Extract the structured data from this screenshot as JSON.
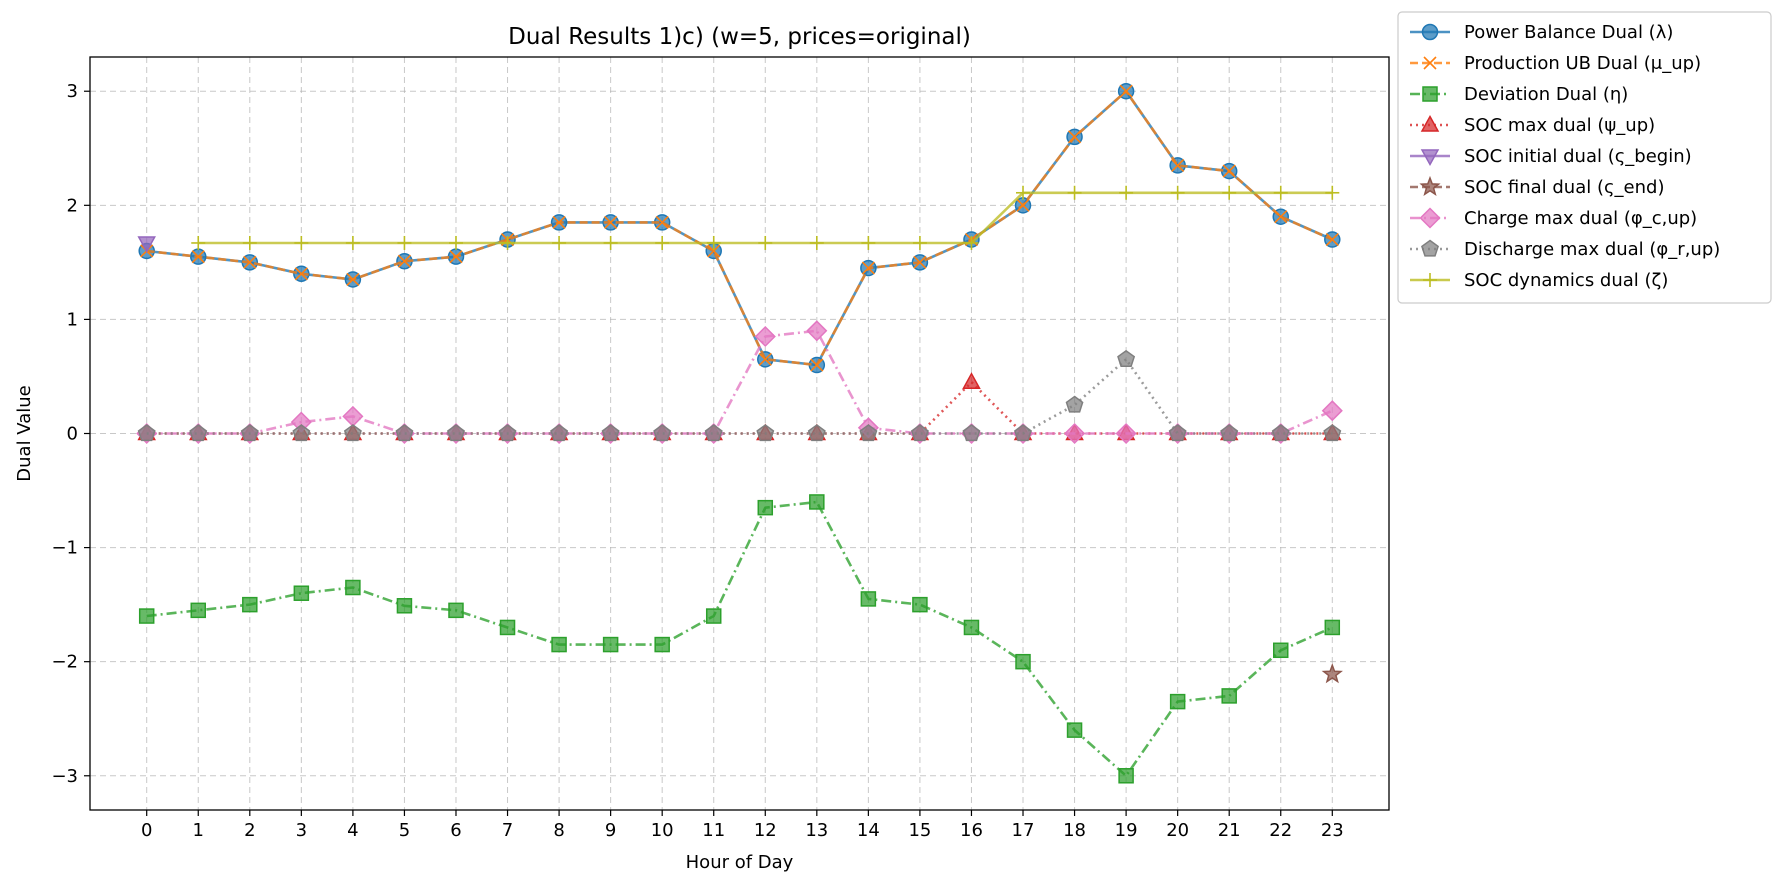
{
  "chart_data": {
    "type": "line",
    "title": "Dual Results 1)c) (w=5, prices=original)",
    "xlabel": "Hour of Day",
    "ylabel": "Dual Value",
    "x": [
      0,
      1,
      2,
      3,
      4,
      5,
      6,
      7,
      8,
      9,
      10,
      11,
      12,
      13,
      14,
      15,
      16,
      17,
      18,
      19,
      20,
      21,
      22,
      23
    ],
    "xlim": [
      -1.1,
      24.1
    ],
    "ylim": [
      -3.3,
      3.3
    ],
    "yticks": [
      -3,
      -2,
      -1,
      0,
      1,
      2,
      3
    ],
    "ytick_labels": [
      "−3",
      "−2",
      "−1",
      "0",
      "1",
      "2",
      "3"
    ],
    "grid": true,
    "legend_position": "outside-top-right",
    "series": [
      {
        "name": "Power Balance Dual (λ)",
        "color": "#1f77b4",
        "marker": "circle",
        "linestyle": "solid",
        "x": [
          0,
          1,
          2,
          3,
          4,
          5,
          6,
          7,
          8,
          9,
          10,
          11,
          12,
          13,
          14,
          15,
          16,
          17,
          18,
          19,
          20,
          21,
          22,
          23
        ],
        "values": [
          1.6,
          1.55,
          1.5,
          1.4,
          1.35,
          1.51,
          1.55,
          1.7,
          1.85,
          1.85,
          1.85,
          1.6,
          0.65,
          0.6,
          1.45,
          1.5,
          1.7,
          2.0,
          2.6,
          3.0,
          2.35,
          2.3,
          1.9,
          1.7
        ]
      },
      {
        "name": "Production UB Dual (μ_up)",
        "color": "#ff7f0e",
        "marker": "x",
        "linestyle": "dashed",
        "x": [
          0,
          1,
          2,
          3,
          4,
          5,
          6,
          7,
          8,
          9,
          10,
          11,
          12,
          13,
          14,
          15,
          16,
          17,
          18,
          19,
          20,
          21,
          22,
          23
        ],
        "values": [
          1.6,
          1.55,
          1.5,
          1.4,
          1.35,
          1.51,
          1.55,
          1.7,
          1.85,
          1.85,
          1.85,
          1.6,
          0.65,
          0.6,
          1.45,
          1.5,
          1.7,
          2.0,
          2.6,
          3.0,
          2.35,
          2.3,
          1.9,
          1.7
        ]
      },
      {
        "name": "Deviation Dual (η)",
        "color": "#2ca02c",
        "marker": "square",
        "linestyle": "dashdot",
        "x": [
          0,
          1,
          2,
          3,
          4,
          5,
          6,
          7,
          8,
          9,
          10,
          11,
          12,
          13,
          14,
          15,
          16,
          17,
          18,
          19,
          20,
          21,
          22,
          23
        ],
        "values": [
          -1.6,
          -1.55,
          -1.5,
          -1.4,
          -1.35,
          -1.51,
          -1.55,
          -1.7,
          -1.85,
          -1.85,
          -1.85,
          -1.6,
          -0.65,
          -0.6,
          -1.45,
          -1.5,
          -1.7,
          -2.0,
          -2.6,
          -3.0,
          -2.35,
          -2.3,
          -1.9,
          -1.7
        ]
      },
      {
        "name": "SOC max dual (ψ_up)",
        "color": "#d62728",
        "marker": "triangle-up",
        "linestyle": "dotted",
        "x": [
          0,
          1,
          2,
          3,
          4,
          5,
          6,
          7,
          8,
          9,
          10,
          11,
          12,
          13,
          14,
          15,
          16,
          17,
          18,
          19,
          20,
          21,
          22,
          23
        ],
        "values": [
          0,
          0,
          0,
          0,
          0,
          0,
          0,
          0,
          0,
          0,
          0,
          0,
          0,
          0,
          0,
          0,
          0.45,
          0,
          0,
          0,
          0,
          0,
          0,
          0
        ]
      },
      {
        "name": "SOC initial dual (ς_begin)",
        "color": "#9467bd",
        "marker": "triangle-down",
        "linestyle": "solid",
        "x": [
          0
        ],
        "values": [
          1.67
        ]
      },
      {
        "name": "SOC final dual (ς_end)",
        "color": "#8c564b",
        "marker": "star",
        "linestyle": "dashed",
        "x": [
          23
        ],
        "values": [
          -2.11
        ]
      },
      {
        "name": "Charge max dual (φ_c,up)",
        "color": "#e377c2",
        "marker": "diamond",
        "linestyle": "dashdot",
        "x": [
          0,
          1,
          2,
          3,
          4,
          5,
          6,
          7,
          8,
          9,
          10,
          11,
          12,
          13,
          14,
          15,
          16,
          17,
          18,
          19,
          20,
          21,
          22,
          23
        ],
        "values": [
          0,
          0,
          0,
          0.1,
          0.15,
          0,
          0,
          0,
          0,
          0,
          0,
          0,
          0.85,
          0.9,
          0.05,
          0,
          0,
          0,
          0,
          0,
          0,
          0,
          0,
          0.2
        ]
      },
      {
        "name": "Discharge max dual (φ_r,up)",
        "color": "#7f7f7f",
        "marker": "pentagon",
        "linestyle": "dotted",
        "x": [
          0,
          1,
          2,
          3,
          4,
          5,
          6,
          7,
          8,
          9,
          10,
          11,
          12,
          13,
          14,
          15,
          16,
          17,
          18,
          19,
          20,
          21,
          22,
          23
        ],
        "values": [
          0,
          0,
          0,
          0,
          0,
          0,
          0,
          0,
          0,
          0,
          0,
          0,
          0,
          0,
          0,
          0,
          0,
          0,
          0.25,
          0.65,
          0,
          0,
          0,
          0
        ]
      },
      {
        "name": "SOC dynamics dual (ζ)",
        "color": "#bcbd22",
        "marker": "plus",
        "linestyle": "solid",
        "x": [
          1,
          2,
          3,
          4,
          5,
          6,
          7,
          8,
          9,
          10,
          11,
          12,
          13,
          14,
          15,
          16,
          17,
          18,
          19,
          20,
          21,
          22,
          23
        ],
        "values": [
          1.67,
          1.67,
          1.67,
          1.67,
          1.67,
          1.67,
          1.67,
          1.67,
          1.67,
          1.67,
          1.67,
          1.67,
          1.67,
          1.67,
          1.67,
          1.67,
          2.11,
          2.11,
          2.11,
          2.11,
          2.11,
          2.11,
          2.11
        ]
      }
    ]
  }
}
